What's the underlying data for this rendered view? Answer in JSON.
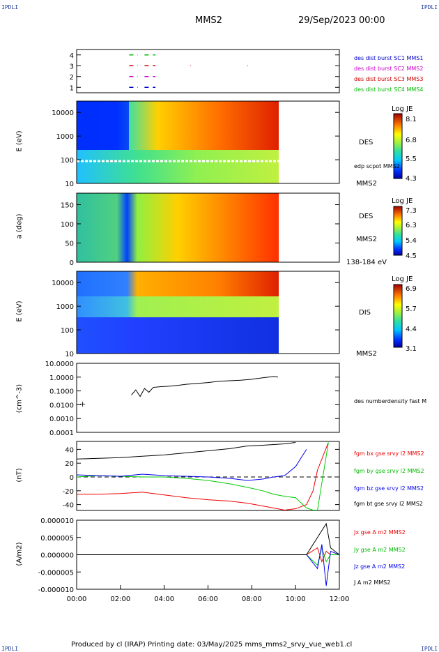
{
  "header": {
    "corner_left": "IPDLI",
    "corner_right": "IPDLI",
    "title": "MMS2",
    "date": "29/Sep/2023 00:00"
  },
  "footer": {
    "text": "Produced by cl (IRAP)   Printing date: 03/May/2025   mms_mms2_srvy_vue_web1.cl",
    "corner_left": "IPDLI",
    "corner_right": "IPDLI"
  },
  "colors": {
    "mms1": "#0000cc",
    "mms2": "#cc00cc",
    "mms3": "#cc0000",
    "mms4": "#00bb00",
    "bx": "#ee0000",
    "by": "#00cc00",
    "bz": "#0000ee",
    "bt": "#000000"
  },
  "panels": {
    "burst": {
      "legend": [
        "des dist burst SC1 MMS1",
        "des dist burst SC2 MMS2",
        "des dist burst SC3 MMS3",
        "des dist burst SC4 MMS4"
      ],
      "yticks": [
        "4",
        "3",
        "2",
        "1"
      ]
    },
    "des_energy": {
      "ylabel": "E (eV)",
      "label": "DES",
      "label2": "edp scpot MMS2",
      "label3": "MMS2",
      "yticks": [
        "10000",
        "1000",
        "100",
        "10"
      ],
      "cb_title": "Log JE",
      "cb_ticks": [
        "8.1",
        "6.8",
        "5.5",
        "4.3"
      ]
    },
    "des_pitch": {
      "ylabel": "a (deg)",
      "label": "DES",
      "label2": "MMS2",
      "label3": "138-184 eV",
      "yticks": [
        "150",
        "100",
        "50",
        "0"
      ],
      "cb_title": "Log JE",
      "cb_ticks": [
        "7.3",
        "6.3",
        "5.4",
        "4.5"
      ]
    },
    "dis_energy": {
      "ylabel": "E (eV)",
      "label": "DIS",
      "label2": "MMS2",
      "yticks": [
        "10000",
        "1000",
        "100",
        "10"
      ],
      "cb_title": "Log JE",
      "cb_ticks": [
        "6.9",
        "5.7",
        "4.4",
        "3.1"
      ]
    },
    "density": {
      "ylabel": "(cm^-3)",
      "label": "des numberdensity fast M",
      "yticks": [
        "10.0000",
        "1.0000",
        "0.1000",
        "0.0100",
        "0.0010",
        "0.0001"
      ]
    },
    "bfield": {
      "ylabel": "(nT)",
      "legend": [
        "fgm bx gse srvy l2 MMS2",
        "fgm by gse srvy l2 MMS2",
        "fgm bz gse srvy l2 MMS2",
        "fgm bt gse srvy l2 MMS2"
      ],
      "yticks": [
        "40",
        "20",
        "0",
        "-20",
        "-40"
      ]
    },
    "current": {
      "ylabel": "(A/m2)",
      "legend": [
        "Jx gse A m2 MMS2",
        "Jy gse A m2 MMS2",
        "Jz gse A m2 MMS2",
        "J A m2 MMS2"
      ],
      "yticks": [
        "0.000010",
        "0.000005",
        "0.000000",
        "-0.000005",
        "-0.000010"
      ]
    }
  },
  "chart_data": [
    {
      "type": "line",
      "title": "des dist burst",
      "x_unit": "UT hours",
      "xlim": [
        0,
        12
      ],
      "ylim": [
        0.5,
        4.5
      ],
      "series": [
        {
          "name": "des dist burst SC1 MMS1",
          "y": 1,
          "segments": [
            [
              2.4,
              2.8
            ],
            [
              3.1,
              3.6
            ]
          ]
        },
        {
          "name": "des dist burst SC2 MMS2",
          "y": 2,
          "segments": [
            [
              2.4,
              2.8
            ],
            [
              3.1,
              3.6
            ]
          ]
        },
        {
          "name": "des dist burst SC3 MMS3",
          "y": 3,
          "segments": [
            [
              2.4,
              2.8
            ],
            [
              3.1,
              3.6
            ],
            [
              5.2,
              5.22
            ],
            [
              7.8,
              7.82
            ]
          ]
        },
        {
          "name": "des dist burst SC4 MMS4",
          "y": 4,
          "segments": [
            [
              2.4,
              2.8
            ],
            [
              3.1,
              3.6
            ]
          ]
        }
      ]
    },
    {
      "type": "heatmap",
      "title": "DES",
      "ylabel": "E (eV)",
      "xlim": [
        0,
        12
      ],
      "ylim": [
        10,
        30000
      ],
      "y_scale": "log",
      "data_xlim": [
        0,
        9.2
      ],
      "colorbar": {
        "title": "Log JE",
        "range": [
          4.3,
          8.1
        ]
      },
      "edp_scpot_eV": 90
    },
    {
      "type": "heatmap",
      "title": "DES",
      "ylabel": "a (deg)",
      "xlim": [
        0,
        12
      ],
      "ylim": [
        0,
        180
      ],
      "data_xlim": [
        0,
        9.2
      ],
      "colorbar": {
        "title": "Log JE",
        "range": [
          4.5,
          7.3
        ]
      }
    },
    {
      "type": "heatmap",
      "title": "DIS",
      "ylabel": "E (eV)",
      "xlim": [
        0,
        12
      ],
      "ylim": [
        10,
        30000
      ],
      "y_scale": "log",
      "data_xlim": [
        0,
        9.2
      ],
      "colorbar": {
        "title": "Log JE",
        "range": [
          3.1,
          6.9
        ]
      }
    },
    {
      "type": "line",
      "title": "des numberdensity fast M",
      "ylabel": "(cm^-3)",
      "xlim": [
        0,
        12
      ],
      "ylim": [
        0.0001,
        10
      ],
      "y_scale": "log",
      "series": [
        {
          "name": "des numberdensity fast M",
          "x": [
            2.5,
            2.7,
            2.9,
            3.1,
            3.3,
            3.5,
            3.8,
            4.2,
            4.6,
            5.0,
            5.5,
            6.0,
            6.5,
            7.0,
            7.5,
            8.0,
            8.5,
            9.0,
            9.2
          ],
          "y": [
            0.05,
            0.12,
            0.04,
            0.15,
            0.08,
            0.18,
            0.2,
            0.22,
            0.25,
            0.3,
            0.35,
            0.4,
            0.5,
            0.55,
            0.6,
            0.7,
            0.9,
            1.1,
            1.0
          ]
        }
      ]
    },
    {
      "type": "line",
      "title": "fgm gse srvy l2 MMS2",
      "ylabel": "(nT)",
      "xlim": [
        0,
        12
      ],
      "ylim": [
        -50,
        50
      ],
      "x": [
        0,
        1,
        2,
        3,
        4,
        5,
        6,
        7,
        7.8,
        8.5,
        9,
        9.5,
        10,
        10.5,
        10.8,
        11,
        11.5
      ],
      "series": [
        {
          "name": "fgm bt gse srvy l2 MMS2",
          "y": [
            26,
            27,
            28,
            30,
            32,
            35,
            38,
            41,
            45,
            46,
            47,
            48,
            50,
            null,
            null,
            null,
            null
          ]
        },
        {
          "name": "fgm bx gse srvy l2 MMS2",
          "y": [
            -25,
            -25,
            -24,
            -22,
            -26,
            -30,
            -33,
            -35,
            -38,
            -42,
            -45,
            -48,
            -46,
            -40,
            -20,
            10,
            50
          ]
        },
        {
          "name": "fgm by gse srvy l2 MMS2",
          "y": [
            0,
            2,
            1,
            0,
            0,
            -2,
            -5,
            -10,
            -15,
            -20,
            -25,
            -28,
            -30,
            -45,
            -48,
            -48,
            50
          ]
        },
        {
          "name": "fgm bz gse srvy l2 MMS2",
          "y": [
            3,
            2,
            1,
            4,
            2,
            1,
            0,
            -2,
            -5,
            -3,
            0,
            2,
            15,
            40,
            null,
            null,
            null
          ]
        }
      ]
    },
    {
      "type": "line",
      "title": "J gse A m2 MMS2",
      "ylabel": "(A/m2)",
      "xlim": [
        0,
        12
      ],
      "ylim": [
        -1e-05,
        1e-05
      ],
      "x": [
        0,
        2,
        4,
        6,
        8,
        10,
        10.5,
        11,
        11.2,
        11.4,
        11.6,
        12
      ],
      "series": [
        {
          "name": "Jx gse A m2 MMS2",
          "y": [
            0,
            0,
            0,
            0,
            0,
            0,
            0,
            2e-06,
            -2e-06,
            1e-06,
            0,
            0
          ]
        },
        {
          "name": "Jy gse A m2 MMS2",
          "y": [
            0,
            0,
            0,
            0,
            0,
            0,
            0,
            -3e-06,
            2e-06,
            -2e-06,
            0,
            0
          ]
        },
        {
          "name": "Jz gse A m2 MMS2",
          "y": [
            0,
            0,
            0,
            0,
            0,
            0,
            0,
            -4e-06,
            3e-06,
            -9e-06,
            1e-06,
            0
          ]
        },
        {
          "name": "J A m2 MMS2",
          "y": [
            0,
            0,
            0,
            0,
            0,
            0,
            0,
            5e-06,
            7e-06,
            9e-06,
            2e-06,
            0
          ]
        }
      ]
    }
  ],
  "xaxis": {
    "ticks": [
      "00:00",
      "02:00",
      "04:00",
      "06:00",
      "08:00",
      "10:00",
      "12:00"
    ]
  }
}
